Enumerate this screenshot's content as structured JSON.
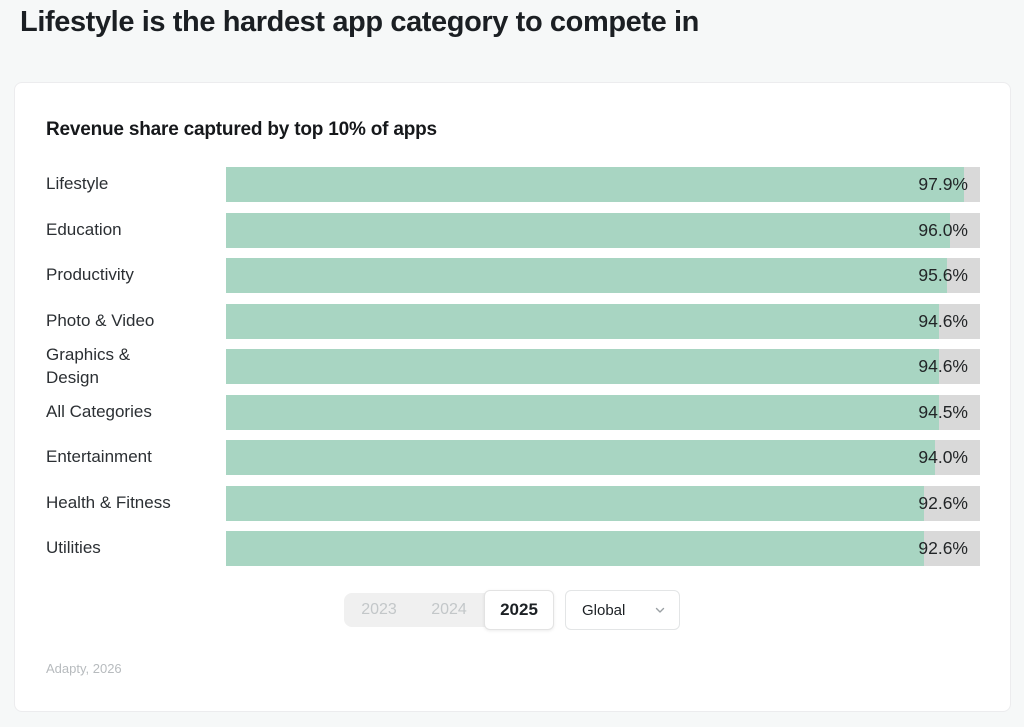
{
  "page": {
    "title": "Lifestyle is the hardest app category to compete in"
  },
  "card": {
    "subtitle": "Revenue share captured by top 10% of apps",
    "source": "Adapty, 2026"
  },
  "chart_data": {
    "type": "bar",
    "orientation": "horizontal",
    "title": "Revenue share captured by top 10% of apps",
    "categories": [
      "Lifestyle",
      "Education",
      "Productivity",
      "Photo & Video",
      "Graphics & Design",
      "All Categories",
      "Entertainment",
      "Health & Fitness",
      "Utilities"
    ],
    "display_labels": [
      "Lifestyle",
      "Education",
      "Productivity",
      "Photo & Video",
      "Graphics &\nDesign",
      "All Categories",
      "Entertainment",
      "Health & Fitness",
      "Utilities"
    ],
    "values": [
      97.9,
      96.0,
      95.6,
      94.6,
      94.6,
      94.5,
      94.0,
      92.6,
      92.6
    ],
    "value_labels": [
      "97.9%",
      "96.0%",
      "95.6%",
      "94.6%",
      "94.6%",
      "94.5%",
      "94.0%",
      "92.6%",
      "92.6%"
    ],
    "xlim": [
      0,
      100
    ],
    "grid": false,
    "legend": false,
    "bar_color": "#a8d5c2",
    "track_color": "#d9d9d9"
  },
  "controls": {
    "year_tabs": [
      {
        "label": "2023",
        "active": false
      },
      {
        "label": "2024",
        "active": false
      },
      {
        "label": "2025",
        "active": true
      }
    ],
    "region_select": {
      "value": "Global"
    }
  }
}
